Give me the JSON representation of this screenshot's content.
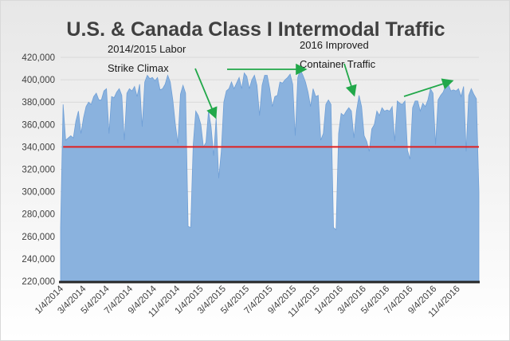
{
  "chart_data": {
    "type": "area",
    "title": "U.S. & Canada Class I Intermodal Traffic",
    "xlabel": "",
    "ylabel": "",
    "ylim": [
      220000,
      420000
    ],
    "yticks": [
      220000,
      240000,
      260000,
      280000,
      300000,
      320000,
      340000,
      360000,
      380000,
      400000,
      420000
    ],
    "ytick_labels": [
      "220,000",
      "240,000",
      "260,000",
      "280,000",
      "300,000",
      "320,000",
      "340,000",
      "360,000",
      "380,000",
      "400,000",
      "420,000"
    ],
    "xtick_labels": [
      "1/4/2014",
      "3/4/2014",
      "5/4/2014",
      "7/4/2014",
      "9/4/2014",
      "11/4/2014",
      "1/4/2015",
      "3/4/2015",
      "5/4/2015",
      "7/4/2015",
      "9/4/2015",
      "11/4/2015",
      "1/4/2016",
      "3/4/2016",
      "5/4/2016",
      "7/4/2016",
      "9/4/2016",
      "11/4/2016"
    ],
    "x_start": "1/4/2014",
    "x_end": "12/31/2016",
    "grid": true,
    "legend": "none",
    "series": [
      {
        "values": [
          268000,
          378000,
          346000,
          348000,
          350000,
          348000,
          363000,
          372000,
          352000,
          366000,
          376000,
          380000,
          378000,
          385000,
          388000,
          382000,
          382000,
          390000,
          392000,
          352000,
          385000,
          384000,
          389000,
          392000,
          386000,
          346000,
          388000,
          392000,
          390000,
          394000,
          385000,
          396000,
          358000,
          398000,
          404000,
          401000,
          402000,
          399000,
          402000,
          391000,
          392000,
          396000,
          404000,
          398000,
          382000,
          360000,
          343000,
          387000,
          395000,
          388000,
          269000,
          268000,
          342000,
          372000,
          368000,
          360000,
          340000,
          344000,
          372000,
          358000,
          332000,
          366000,
          312000,
          336000,
          380000,
          390000,
          392000,
          398000,
          392000,
          397000,
          402000,
          392000,
          406000,
          403000,
          392000,
          400000,
          404000,
          395000,
          368000,
          395000,
          404000,
          404000,
          392000,
          376000,
          385000,
          386000,
          398000,
          397000,
          400000,
          402000,
          405000,
          396000,
          350000,
          402000,
          409000,
          404000,
          398000,
          389000,
          376000,
          392000,
          385000,
          386000,
          346000,
          352000,
          378000,
          382000,
          378000,
          268000,
          266000,
          352000,
          370000,
          368000,
          372000,
          375000,
          372000,
          348000,
          372000,
          386000,
          376000,
          350000,
          345000,
          336000,
          356000,
          360000,
          372000,
          368000,
          375000,
          372000,
          373000,
          372000,
          376000,
          345000,
          381000,
          379000,
          378000,
          381000,
          337000,
          329000,
          375000,
          381000,
          381000,
          372000,
          379000,
          376000,
          382000,
          392000,
          388000,
          342000,
          382000,
          386000,
          389000,
          395000,
          396000,
          390000,
          391000,
          390000,
          392000,
          385000,
          394000,
          336000,
          386000,
          392000,
          387000,
          383000,
          300000
        ]
      }
    ],
    "reference_line": {
      "value": 340000,
      "color": "#e02020"
    },
    "annotations": [
      {
        "text_line1": "2014/2015 Labor",
        "text_line2": "Strike Climax"
      },
      {
        "text_line1": "2016 Improved",
        "text_line2": "Container Traffic"
      }
    ],
    "colors": {
      "area": "#8ab2de",
      "area_stroke": "#6f9fd6",
      "arrow": "#22a84a",
      "axis": "#262626",
      "grid": "#d9d9d9"
    }
  }
}
